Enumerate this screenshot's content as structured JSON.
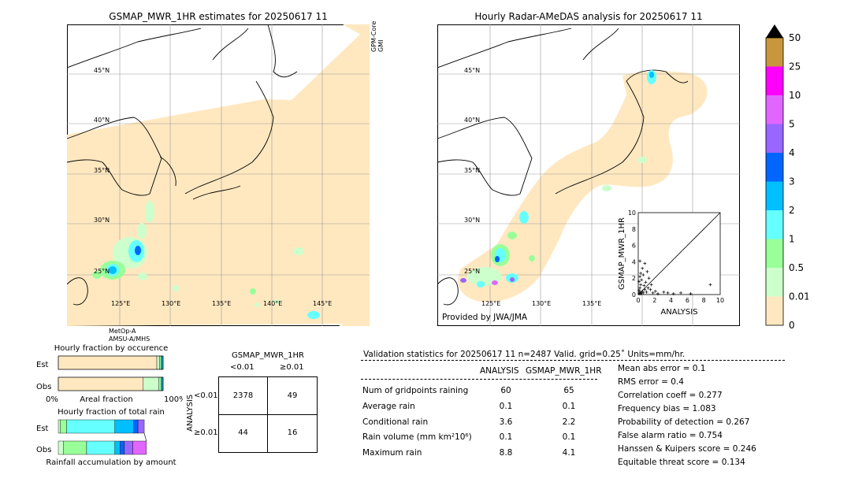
{
  "left_map": {
    "title": "GSMAP_MWR_1HR estimates for 20250617 11",
    "sat_side_label": "GPM-Core\nGMI",
    "sat_bottom_label": [
      "MetOp-A",
      "AMSU-A/MHS"
    ],
    "lat_labels": [
      "45°N",
      "40°N",
      "35°N",
      "30°N",
      "25°N"
    ],
    "lon_labels": [
      "125°E",
      "130°E",
      "135°E",
      "140°E",
      "145°E"
    ]
  },
  "right_map": {
    "title": "Hourly Radar-AMeDAS analysis for 20250617 11",
    "credit": "Provided by JWA/JMA",
    "lat_labels": [
      "45°N",
      "40°N",
      "35°N",
      "30°N",
      "25°N"
    ],
    "lon_labels": [
      "125°E",
      "130°E",
      "135°E"
    ]
  },
  "colorbar": {
    "labels": [
      "50",
      "25",
      "10",
      "5",
      "4",
      "3",
      "2",
      "1",
      "0.5",
      "0.01",
      "0"
    ],
    "colors": [
      "#c8963c",
      "#ff00ff",
      "#e066ff",
      "#9966ff",
      "#0066ff",
      "#00bfff",
      "#66ffff",
      "#99ff99",
      "#ccffcc",
      "#ffe8c0"
    ],
    "extend_color": "#000000"
  },
  "chart_data": [
    {
      "type": "scatter",
      "xlabel": "ANALYSIS",
      "ylabel": "GSMAP_MWR_1HR",
      "xlim": [
        0,
        10
      ],
      "ylim": [
        0,
        10
      ],
      "ticks": [
        "0",
        "2",
        "4",
        "6",
        "8",
        "10"
      ],
      "points": [
        [
          0.1,
          0.1
        ],
        [
          0.2,
          0.3
        ],
        [
          0.3,
          0.1
        ],
        [
          0.1,
          0.5
        ],
        [
          0.4,
          0.2
        ],
        [
          0.2,
          0.8
        ],
        [
          0.5,
          0.4
        ],
        [
          0.3,
          1.2
        ],
        [
          0.6,
          0.2
        ],
        [
          0.8,
          0.6
        ],
        [
          0.1,
          1.6
        ],
        [
          0.4,
          1.8
        ],
        [
          0.2,
          2.2
        ],
        [
          0.7,
          1.1
        ],
        [
          1.0,
          0.3
        ],
        [
          1.2,
          0.8
        ],
        [
          0.9,
          1.5
        ],
        [
          0.3,
          2.6
        ],
        [
          0.5,
          3.2
        ],
        [
          0.2,
          4.1
        ],
        [
          1.5,
          0.6
        ],
        [
          1.8,
          0.2
        ],
        [
          2.1,
          0.4
        ],
        [
          1.3,
          2.0
        ],
        [
          2.4,
          0.1
        ],
        [
          3.1,
          0.3
        ],
        [
          3.6,
          0.2
        ],
        [
          4.3,
          0.1
        ],
        [
          5.2,
          0.2
        ],
        [
          6.4,
          0.1
        ],
        [
          8.8,
          1.2
        ],
        [
          1.1,
          2.8
        ],
        [
          0.6,
          2.4
        ],
        [
          1.6,
          1.2
        ],
        [
          0.8,
          3.8
        ]
      ]
    },
    {
      "type": "bar",
      "title": "Hourly fraction by occurence",
      "categories": [
        "Est",
        "Obs"
      ],
      "xlabel": "Areal fraction",
      "xlim": [
        "0%",
        "100%"
      ],
      "series": [
        {
          "values": [
            0.94,
            0.81
          ]
        },
        {
          "values": [
            0.025,
            0.15
          ]
        },
        {
          "values": [
            0.015,
            0.02
          ]
        },
        {
          "values": [
            0.01,
            0.01
          ]
        },
        {
          "values": [
            0.01,
            0.01
          ]
        }
      ],
      "colors": [
        "#ffe8c0",
        "#ccffcc",
        "#99ff99",
        "#66ffff",
        "#00bfff"
      ]
    },
    {
      "type": "bar",
      "title": "Hourly fraction of total rain",
      "categories": [
        "Est",
        "Obs"
      ],
      "xlabel": "Rainfall accumulation by amount",
      "series": [
        {
          "values": [
            0.02,
            0.05
          ]
        },
        {
          "values": [
            0.06,
            0.22
          ]
        },
        {
          "values": [
            0.46,
            0.27
          ]
        },
        {
          "values": [
            0.18,
            0.05
          ]
        },
        {
          "values": [
            0.04,
            0.04
          ]
        },
        {
          "values": [
            0.06,
            0.08
          ]
        },
        {
          "values": [
            0.0,
            0.13
          ]
        }
      ],
      "colors": [
        "#ccffcc",
        "#99ff99",
        "#66ffff",
        "#00bfff",
        "#0066ff",
        "#9966ff",
        "#e066ff"
      ]
    }
  ],
  "contingency": {
    "title": "GSMAP_MWR_1HR",
    "col_headers": [
      "<0.01",
      "≥0.01"
    ],
    "row_headers": [
      "<0.01",
      "≥0.01"
    ],
    "row_axis_label": "ANALYSIS",
    "cells": [
      [
        "2378",
        "49"
      ],
      [
        "44",
        "16"
      ]
    ]
  },
  "validation": {
    "header": "Validation statistics for 20250617 11  n=2487 Valid. grid=0.25˚ Units=mm/hr.",
    "col_analysis": "ANALYSIS",
    "col_gsmap": "GSMAP_MWR_1HR",
    "rows": [
      {
        "label": "Num of gridpoints raining",
        "a": "60",
        "g": "65"
      },
      {
        "label": "Average rain",
        "a": "0.1",
        "g": "0.1"
      },
      {
        "label": "Conditional rain",
        "a": "3.6",
        "g": "2.2"
      },
      {
        "label": "Rain volume (mm km²10⁶)",
        "a": "0.1",
        "g": "0.1"
      },
      {
        "label": "Maximum rain",
        "a": "8.8",
        "g": "4.1"
      }
    ],
    "scores": [
      "Mean abs error =    0.1",
      "RMS error =    0.4",
      "Correlation coeff =  0.277",
      "Frequency bias =  1.083",
      "Probability of detection =  0.267",
      "False alarm ratio =  0.754",
      "Hanssen & Kuipers score =  0.246",
      "Equitable threat score =  0.134"
    ]
  }
}
